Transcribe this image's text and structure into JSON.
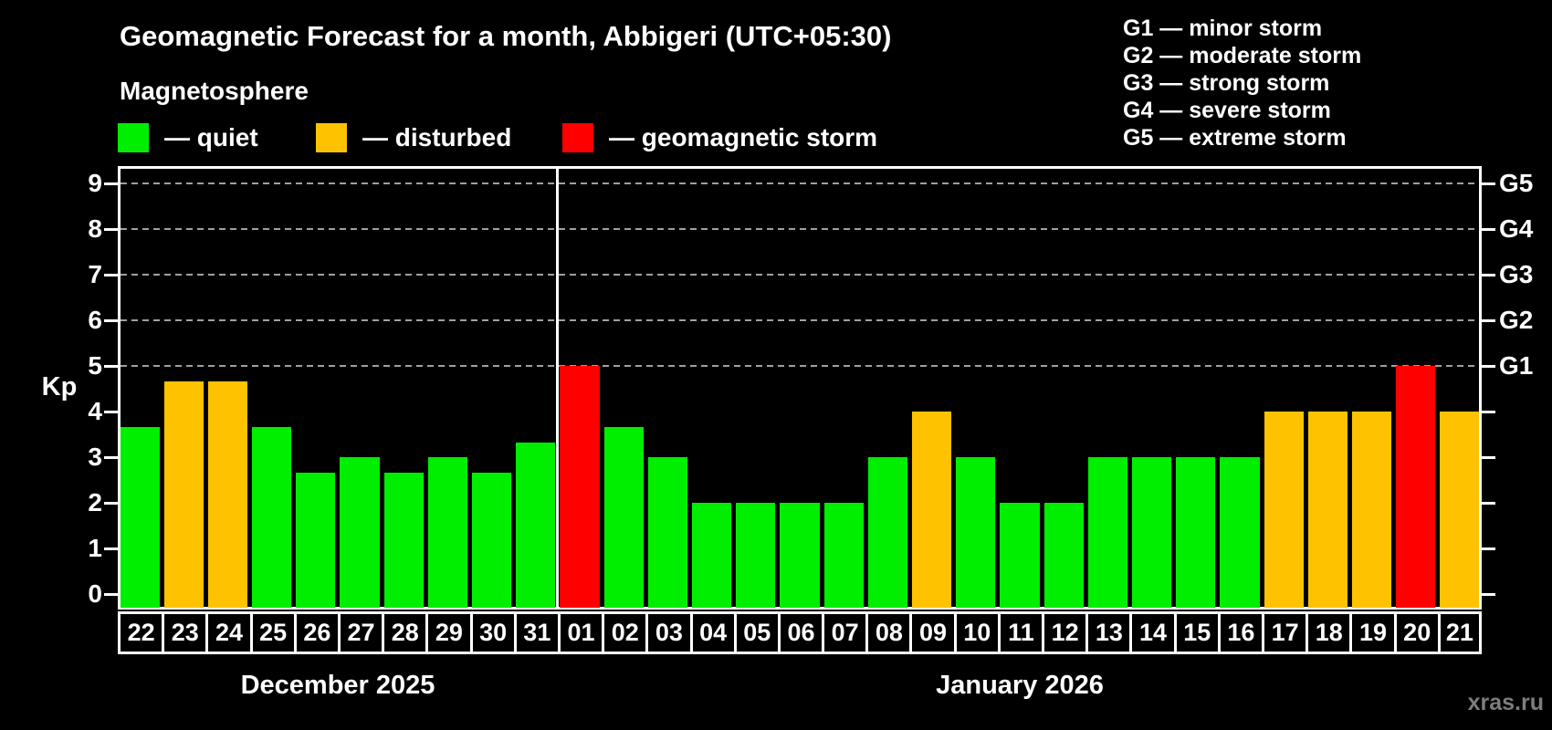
{
  "title": "Geomagnetic Forecast for a month, Abbigeri (UTC+05:30)",
  "subtitle": "Magnetosphere",
  "watermark": "xras.ru",
  "colors": {
    "background": "#000000",
    "text": "#ffffff",
    "grid": "#a0a0a0",
    "axis": "#ffffff",
    "quiet": "#00ee00",
    "disturbed": "#ffc200",
    "storm": "#ff0000",
    "watermark": "#7d7d7d"
  },
  "legend": [
    {
      "status": "quiet",
      "label": "— quiet"
    },
    {
      "status": "disturbed",
      "label": "— disturbed"
    },
    {
      "status": "storm",
      "label": "— geomagnetic storm"
    }
  ],
  "storm_scale": [
    "G1 — minor storm",
    "G2 — moderate storm",
    "G3 — strong storm",
    "G4 — severe storm",
    "G5 — extreme storm"
  ],
  "chart_data": {
    "type": "bar",
    "title": "Geomagnetic Forecast for a month, Abbigeri (UTC+05:30)",
    "xlabel": "",
    "ylabel": "Kp",
    "ylim": [
      0,
      9
    ],
    "y_ticks": [
      0,
      1,
      2,
      3,
      4,
      5,
      6,
      7,
      8,
      9
    ],
    "gridlines_at_kp": [
      5,
      6,
      7,
      8,
      9
    ],
    "right_axis_labels": [
      {
        "kp": 5,
        "label": "G1"
      },
      {
        "kp": 6,
        "label": "G2"
      },
      {
        "kp": 7,
        "label": "G3"
      },
      {
        "kp": 8,
        "label": "G4"
      },
      {
        "kp": 9,
        "label": "G5"
      }
    ],
    "legend_position": "top",
    "grid": "dashed horizontal at Kp 5-9 only",
    "months": [
      {
        "label": "December 2025",
        "days": [
          "22",
          "23",
          "24",
          "25",
          "26",
          "27",
          "28",
          "29",
          "30",
          "31"
        ]
      },
      {
        "label": "January 2026",
        "days": [
          "01",
          "02",
          "03",
          "04",
          "05",
          "06",
          "07",
          "08",
          "09",
          "10",
          "11",
          "12",
          "13",
          "14",
          "15",
          "16",
          "17",
          "18",
          "19",
          "20",
          "21"
        ]
      }
    ],
    "series": [
      {
        "month": "December 2025",
        "date": "22",
        "kp": 3.67,
        "status": "quiet"
      },
      {
        "month": "December 2025",
        "date": "23",
        "kp": 4.67,
        "status": "disturbed"
      },
      {
        "month": "December 2025",
        "date": "24",
        "kp": 4.67,
        "status": "disturbed"
      },
      {
        "month": "December 2025",
        "date": "25",
        "kp": 3.67,
        "status": "quiet"
      },
      {
        "month": "December 2025",
        "date": "26",
        "kp": 2.67,
        "status": "quiet"
      },
      {
        "month": "December 2025",
        "date": "27",
        "kp": 3.0,
        "status": "quiet"
      },
      {
        "month": "December 2025",
        "date": "28",
        "kp": 2.67,
        "status": "quiet"
      },
      {
        "month": "December 2025",
        "date": "29",
        "kp": 3.0,
        "status": "quiet"
      },
      {
        "month": "December 2025",
        "date": "30",
        "kp": 2.67,
        "status": "quiet"
      },
      {
        "month": "December 2025",
        "date": "31",
        "kp": 3.33,
        "status": "quiet"
      },
      {
        "month": "January 2026",
        "date": "01",
        "kp": 5.0,
        "status": "storm"
      },
      {
        "month": "January 2026",
        "date": "02",
        "kp": 3.67,
        "status": "quiet"
      },
      {
        "month": "January 2026",
        "date": "03",
        "kp": 3.0,
        "status": "quiet"
      },
      {
        "month": "January 2026",
        "date": "04",
        "kp": 2.0,
        "status": "quiet"
      },
      {
        "month": "January 2026",
        "date": "05",
        "kp": 2.0,
        "status": "quiet"
      },
      {
        "month": "January 2026",
        "date": "06",
        "kp": 2.0,
        "status": "quiet"
      },
      {
        "month": "January 2026",
        "date": "07",
        "kp": 2.0,
        "status": "quiet"
      },
      {
        "month": "January 2026",
        "date": "08",
        "kp": 3.0,
        "status": "quiet"
      },
      {
        "month": "January 2026",
        "date": "09",
        "kp": 4.0,
        "status": "disturbed"
      },
      {
        "month": "January 2026",
        "date": "10",
        "kp": 3.0,
        "status": "quiet"
      },
      {
        "month": "January 2026",
        "date": "11",
        "kp": 2.0,
        "status": "quiet"
      },
      {
        "month": "January 2026",
        "date": "12",
        "kp": 2.0,
        "status": "quiet"
      },
      {
        "month": "January 2026",
        "date": "13",
        "kp": 3.0,
        "status": "quiet"
      },
      {
        "month": "January 2026",
        "date": "14",
        "kp": 3.0,
        "status": "quiet"
      },
      {
        "month": "January 2026",
        "date": "15",
        "kp": 3.0,
        "status": "quiet"
      },
      {
        "month": "January 2026",
        "date": "16",
        "kp": 3.0,
        "status": "quiet"
      },
      {
        "month": "January 2026",
        "date": "17",
        "kp": 4.0,
        "status": "disturbed"
      },
      {
        "month": "January 2026",
        "date": "18",
        "kp": 4.0,
        "status": "disturbed"
      },
      {
        "month": "January 2026",
        "date": "19",
        "kp": 4.0,
        "status": "disturbed"
      },
      {
        "month": "January 2026",
        "date": "20",
        "kp": 5.0,
        "status": "storm"
      },
      {
        "month": "January 2026",
        "date": "21",
        "kp": 4.0,
        "status": "disturbed"
      }
    ]
  }
}
